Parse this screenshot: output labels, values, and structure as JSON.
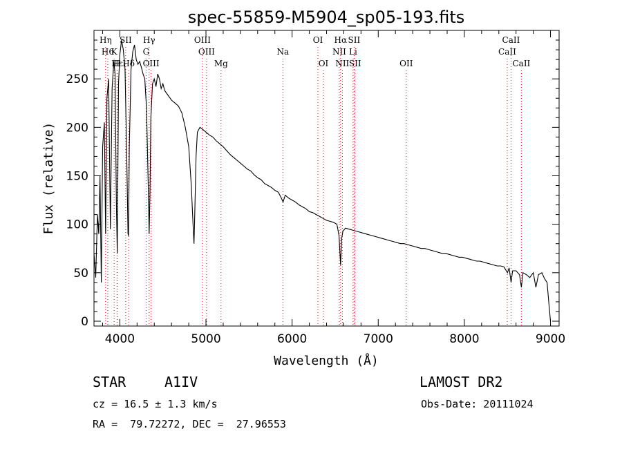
{
  "chart_data": {
    "type": "line",
    "title": "spec-55859-M5904_sp05-193.fits",
    "xlabel": "Wavelength (Å)",
    "ylabel": "Flux (relative)",
    "xlim": [
      3700,
      9100
    ],
    "ylim": [
      -5,
      300
    ],
    "x_ticks": [
      4000,
      5000,
      6000,
      7000,
      8000,
      9000
    ],
    "y_ticks": [
      0,
      50,
      100,
      150,
      200,
      250
    ],
    "grid": false,
    "line_color": "#000000",
    "marker_color": "#cc0000",
    "spectrum": [
      [
        3700,
        70
      ],
      [
        3720,
        45
      ],
      [
        3740,
        110
      ],
      [
        3755,
        90
      ],
      [
        3770,
        150
      ],
      [
        3785,
        40
      ],
      [
        3800,
        180
      ],
      [
        3820,
        205
      ],
      [
        3835,
        90
      ],
      [
        3850,
        230
      ],
      [
        3870,
        250
      ],
      [
        3890,
        95
      ],
      [
        3910,
        240
      ],
      [
        3930,
        268
      ],
      [
        3945,
        255
      ],
      [
        3960,
        120
      ],
      [
        3970,
        70
      ],
      [
        3985,
        245
      ],
      [
        4000,
        275
      ],
      [
        4020,
        290
      ],
      [
        4040,
        280
      ],
      [
        4060,
        260
      ],
      [
        4080,
        170
      ],
      [
        4095,
        90
      ],
      [
        4101,
        88
      ],
      [
        4110,
        180
      ],
      [
        4130,
        260
      ],
      [
        4150,
        278
      ],
      [
        4170,
        285
      ],
      [
        4190,
        270
      ],
      [
        4210,
        265
      ],
      [
        4230,
        268
      ],
      [
        4250,
        262
      ],
      [
        4270,
        255
      ],
      [
        4290,
        250
      ],
      [
        4310,
        220
      ],
      [
        4330,
        140
      ],
      [
        4340,
        90
      ],
      [
        4350,
        130
      ],
      [
        4360,
        210
      ],
      [
        4380,
        245
      ],
      [
        4400,
        250
      ],
      [
        4420,
        242
      ],
      [
        4440,
        255
      ],
      [
        4460,
        250
      ],
      [
        4480,
        240
      ],
      [
        4500,
        245
      ],
      [
        4520,
        238
      ],
      [
        4560,
        233
      ],
      [
        4600,
        228
      ],
      [
        4640,
        225
      ],
      [
        4680,
        222
      ],
      [
        4720,
        215
      ],
      [
        4760,
        200
      ],
      [
        4800,
        180
      ],
      [
        4830,
        140
      ],
      [
        4850,
        100
      ],
      [
        4861,
        80
      ],
      [
        4870,
        110
      ],
      [
        4885,
        170
      ],
      [
        4900,
        195
      ],
      [
        4930,
        200
      ],
      [
        4960,
        198
      ],
      [
        5000,
        195
      ],
      [
        5040,
        192
      ],
      [
        5080,
        190
      ],
      [
        5120,
        186
      ],
      [
        5160,
        183
      ],
      [
        5200,
        180
      ],
      [
        5240,
        176
      ],
      [
        5280,
        172
      ],
      [
        5320,
        169
      ],
      [
        5360,
        166
      ],
      [
        5400,
        163
      ],
      [
        5440,
        160
      ],
      [
        5480,
        157
      ],
      [
        5520,
        155
      ],
      [
        5560,
        151
      ],
      [
        5600,
        148
      ],
      [
        5640,
        146
      ],
      [
        5680,
        142
      ],
      [
        5720,
        140
      ],
      [
        5760,
        138
      ],
      [
        5800,
        135
      ],
      [
        5840,
        133
      ],
      [
        5870,
        128
      ],
      [
        5895,
        123
      ],
      [
        5920,
        130
      ],
      [
        5960,
        127
      ],
      [
        6000,
        125
      ],
      [
        6040,
        123
      ],
      [
        6080,
        120
      ],
      [
        6120,
        118
      ],
      [
        6160,
        116
      ],
      [
        6200,
        113
      ],
      [
        6240,
        112
      ],
      [
        6280,
        110
      ],
      [
        6320,
        108
      ],
      [
        6360,
        106
      ],
      [
        6400,
        104
      ],
      [
        6440,
        103
      ],
      [
        6480,
        102
      ],
      [
        6520,
        100
      ],
      [
        6545,
        88
      ],
      [
        6563,
        58
      ],
      [
        6575,
        85
      ],
      [
        6590,
        93
      ],
      [
        6620,
        96
      ],
      [
        6660,
        95
      ],
      [
        6700,
        94
      ],
      [
        6740,
        93
      ],
      [
        6780,
        92
      ],
      [
        6820,
        91
      ],
      [
        6860,
        90
      ],
      [
        6900,
        89
      ],
      [
        6940,
        88
      ],
      [
        6980,
        87
      ],
      [
        7020,
        86
      ],
      [
        7060,
        85
      ],
      [
        7100,
        84
      ],
      [
        7140,
        83
      ],
      [
        7180,
        82
      ],
      [
        7220,
        81
      ],
      [
        7260,
        80
      ],
      [
        7300,
        80
      ],
      [
        7340,
        79
      ],
      [
        7380,
        78
      ],
      [
        7420,
        77
      ],
      [
        7460,
        76
      ],
      [
        7500,
        75
      ],
      [
        7540,
        75
      ],
      [
        7580,
        74
      ],
      [
        7620,
        73
      ],
      [
        7660,
        72
      ],
      [
        7700,
        71
      ],
      [
        7740,
        70
      ],
      [
        7780,
        70
      ],
      [
        7820,
        69
      ],
      [
        7860,
        68
      ],
      [
        7900,
        67
      ],
      [
        7940,
        66
      ],
      [
        7980,
        66
      ],
      [
        8020,
        65
      ],
      [
        8060,
        64
      ],
      [
        8100,
        63
      ],
      [
        8140,
        62
      ],
      [
        8180,
        62
      ],
      [
        8220,
        61
      ],
      [
        8260,
        60
      ],
      [
        8300,
        59
      ],
      [
        8340,
        58
      ],
      [
        8380,
        57
      ],
      [
        8420,
        57
      ],
      [
        8460,
        56
      ],
      [
        8500,
        50
      ],
      [
        8520,
        55
      ],
      [
        8542,
        40
      ],
      [
        8560,
        52
      ],
      [
        8600,
        52
      ],
      [
        8640,
        48
      ],
      [
        8662,
        35
      ],
      [
        8680,
        50
      ],
      [
        8720,
        48
      ],
      [
        8760,
        45
      ],
      [
        8800,
        50
      ],
      [
        8830,
        35
      ],
      [
        8860,
        48
      ],
      [
        8900,
        50
      ],
      [
        8930,
        44
      ],
      [
        8960,
        40
      ],
      [
        8980,
        20
      ],
      [
        9000,
        0
      ]
    ],
    "lines": [
      {
        "label": "Hη",
        "wave": 3835,
        "row": 0
      },
      {
        "label": "H6",
        "wave": 3860,
        "row": 1
      },
      {
        "label": "K",
        "wave": 3934,
        "row": 1
      },
      {
        "label": "Hε",
        "wave": 3970,
        "row": 2
      },
      {
        "label": "H",
        "wave": 3968,
        "row": 2
      },
      {
        "label": "SII",
        "wave": 4068,
        "row": 0
      },
      {
        "label": "Hδ",
        "wave": 4102,
        "row": 2
      },
      {
        "label": "Hγ",
        "wave": 4340,
        "row": 0
      },
      {
        "label": "G",
        "wave": 4305,
        "row": 1
      },
      {
        "label": "OIII",
        "wave": 4363,
        "row": 2
      },
      {
        "label": "OIII",
        "wave": 4959,
        "row": 0
      },
      {
        "label": "OIII",
        "wave": 5007,
        "row": 1
      },
      {
        "label": "Mg",
        "wave": 5175,
        "row": 2
      },
      {
        "label": "Na",
        "wave": 5893,
        "row": 1
      },
      {
        "label": "OI",
        "wave": 6300,
        "row": 0
      },
      {
        "label": "OI",
        "wave": 6364,
        "row": 2
      },
      {
        "label": "Hα",
        "wave": 6563,
        "row": 0
      },
      {
        "label": "SII",
        "wave": 6720,
        "row": 0
      },
      {
        "label": "NII",
        "wave": 6548,
        "row": 1
      },
      {
        "label": "Li",
        "wave": 6708,
        "row": 1
      },
      {
        "label": "NII",
        "wave": 6583,
        "row": 2
      },
      {
        "label": "SII",
        "wave": 6731,
        "row": 2
      },
      {
        "label": "OII",
        "wave": 7325,
        "row": 2
      },
      {
        "label": "CaII",
        "wave": 8542,
        "row": 0
      },
      {
        "label": "CaII",
        "wave": 8498,
        "row": 1
      },
      {
        "label": "CaII",
        "wave": 8662,
        "row": 2
      }
    ]
  },
  "info": {
    "object_class": "STAR",
    "subclass": "A1IV",
    "survey": "LAMOST DR2",
    "redshift": "cz = 16.5 ± 1.3 km/s",
    "obs_date": "Obs-Date: 20111024",
    "coords": "RA =  79.72272, DEC =  27.96553"
  }
}
